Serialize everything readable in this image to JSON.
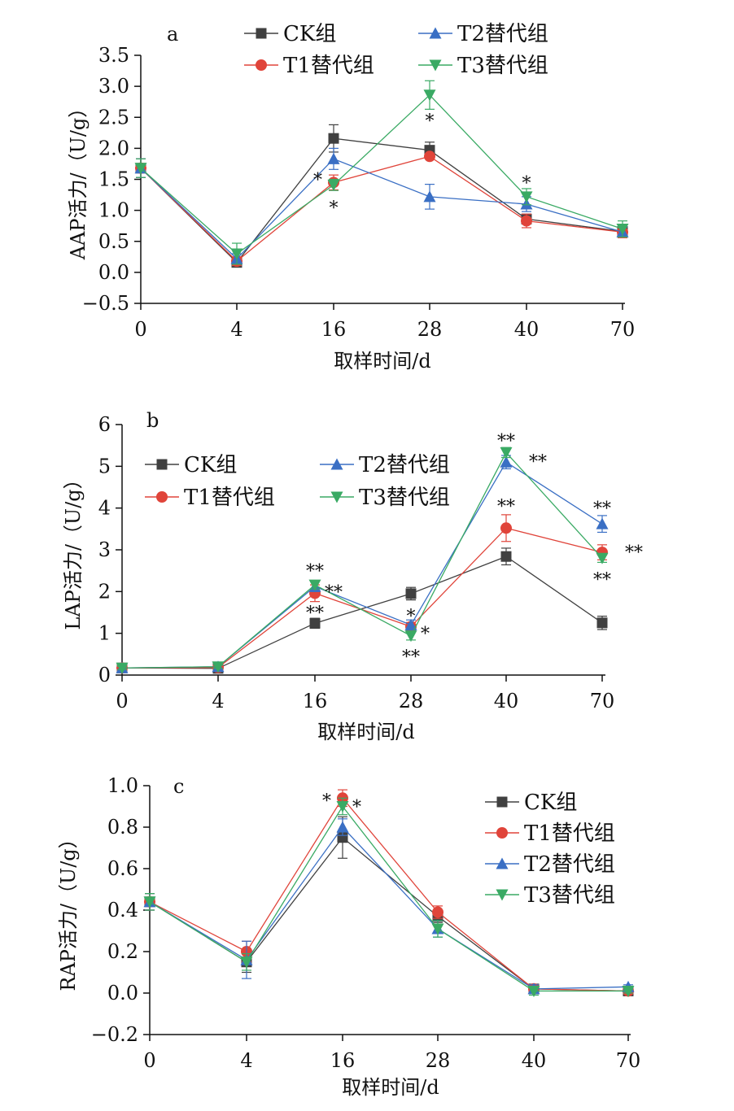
{
  "chart_data": [
    {
      "type": "line",
      "panel_label": "a",
      "ylabel": "AAP活力/（U/g）",
      "xlabel": "取样时间/d",
      "categories": [
        "0",
        "4",
        "16",
        "28",
        "40",
        "70"
      ],
      "ylim": [
        -0.5,
        3.5
      ],
      "yticks": [
        "−0.5",
        "0.0",
        "0.5",
        "1.0",
        "1.5",
        "2.0",
        "2.5",
        "3.0",
        "3.5"
      ],
      "legend_placement": "top",
      "series": [
        {
          "name": "CK组",
          "color": "#404040",
          "marker": "square",
          "values": [
            1.68,
            0.16,
            2.16,
            1.97,
            0.86,
            0.66
          ],
          "errors": [
            0.15,
            0.07,
            0.22,
            0.13,
            0.08,
            0.1
          ]
        },
        {
          "name": "T1替代组",
          "color": "#e0443a",
          "marker": "circle",
          "values": [
            1.68,
            0.18,
            1.45,
            1.87,
            0.83,
            0.65
          ],
          "errors": [
            0.15,
            0.07,
            0.12,
            0.04,
            0.11,
            0.09
          ]
        },
        {
          "name": "T2替代组",
          "color": "#3a6fc4",
          "marker": "triangle-up",
          "values": [
            1.68,
            0.22,
            1.83,
            1.22,
            1.1,
            0.65
          ],
          "errors": [
            0.15,
            0.08,
            0.17,
            0.2,
            0.12,
            0.08
          ]
        },
        {
          "name": "T3替代组",
          "color": "#3aaa64",
          "marker": "triangle-down",
          "values": [
            1.68,
            0.3,
            1.41,
            2.86,
            1.22,
            0.7
          ],
          "errors": [
            0.15,
            0.17,
            0.09,
            0.23,
            0.13,
            0.13
          ]
        }
      ],
      "annotations": [
        {
          "text": "*",
          "x": "16",
          "y": 1.5,
          "side": "left"
        },
        {
          "text": "*",
          "x": "16",
          "y": 1.05,
          "side": "center"
        },
        {
          "text": "*",
          "x": "28",
          "y": 2.45,
          "side": "center"
        },
        {
          "text": "*",
          "x": "40",
          "y": 1.45,
          "side": "center"
        }
      ]
    },
    {
      "type": "line",
      "panel_label": "b",
      "ylabel": "LAP活力/（U/g）",
      "xlabel": "取样时间/d",
      "categories": [
        "0",
        "4",
        "16",
        "28",
        "40",
        "70"
      ],
      "ylim": [
        0,
        6
      ],
      "yticks": [
        "0",
        "1",
        "2",
        "3",
        "4",
        "5",
        "6"
      ],
      "legend_placement": "upper-left",
      "series": [
        {
          "name": "CK组",
          "color": "#404040",
          "marker": "square",
          "values": [
            0.17,
            0.16,
            1.24,
            1.95,
            2.84,
            1.25
          ],
          "errors": [
            0.04,
            0.04,
            0.12,
            0.15,
            0.2,
            0.16
          ]
        },
        {
          "name": "T1替代组",
          "color": "#e0443a",
          "marker": "circle",
          "values": [
            0.17,
            0.18,
            1.96,
            1.16,
            3.52,
            2.94
          ],
          "errors": [
            0.04,
            0.04,
            0.2,
            0.1,
            0.32,
            0.18
          ]
        },
        {
          "name": "T2替代组",
          "color": "#3a6fc4",
          "marker": "triangle-up",
          "values": [
            0.17,
            0.2,
            2.12,
            1.2,
            5.1,
            3.62
          ],
          "errors": [
            0.04,
            0.04,
            0.12,
            0.12,
            0.16,
            0.2
          ]
        },
        {
          "name": "T3替代组",
          "color": "#3aaa64",
          "marker": "triangle-down",
          "values": [
            0.17,
            0.2,
            2.16,
            0.94,
            5.33,
            2.8
          ],
          "errors": [
            0.04,
            0.04,
            0.1,
            0.1,
            0.12,
            0.1
          ]
        }
      ],
      "annotations": [
        {
          "text": "**",
          "x": "16",
          "y": 2.5,
          "side": "center"
        },
        {
          "text": "**",
          "x": "16",
          "y": 2.0,
          "side": "right"
        },
        {
          "text": "**",
          "x": "16",
          "y": 1.5,
          "side": "center"
        },
        {
          "text": "*",
          "x": "28",
          "y": 1.42,
          "side": "center"
        },
        {
          "text": "*",
          "x": "28",
          "y": 1.0,
          "side": "right"
        },
        {
          "text": "**",
          "x": "28",
          "y": 0.45,
          "side": "center"
        },
        {
          "text": "**",
          "x": "40",
          "y": 5.62,
          "side": "center"
        },
        {
          "text": "**",
          "x": "40",
          "y": 5.12,
          "side": "far-right"
        },
        {
          "text": "**",
          "x": "40",
          "y": 4.05,
          "side": "center"
        },
        {
          "text": "**",
          "x": "70",
          "y": 4.0,
          "side": "center"
        },
        {
          "text": "**",
          "x": "70",
          "y": 2.95,
          "side": "far-right"
        },
        {
          "text": "**",
          "x": "70",
          "y": 2.3,
          "side": "center"
        }
      ]
    },
    {
      "type": "line",
      "panel_label": "c",
      "ylabel": "RAP活力/（U/g）",
      "xlabel": "取样时间/d",
      "categories": [
        "0",
        "4",
        "16",
        "28",
        "40",
        "70"
      ],
      "ylim": [
        -0.2,
        1.0
      ],
      "yticks": [
        "−0.2",
        "0.0",
        "0.2",
        "0.4",
        "0.6",
        "0.8",
        "1.0"
      ],
      "legend_placement": "right",
      "series": [
        {
          "name": "CK组",
          "color": "#404040",
          "marker": "square",
          "values": [
            0.44,
            0.15,
            0.75,
            0.37,
            0.02,
            0.01
          ],
          "errors": [
            0.04,
            0.05,
            0.1,
            0.03,
            0.02,
            0.01
          ]
        },
        {
          "name": "T1替代组",
          "color": "#e0443a",
          "marker": "circle",
          "values": [
            0.44,
            0.2,
            0.94,
            0.39,
            0.02,
            0.01
          ],
          "errors": [
            0.04,
            0.05,
            0.04,
            0.03,
            0.02,
            0.01
          ]
        },
        {
          "name": "T2替代组",
          "color": "#3a6fc4",
          "marker": "triangle-up",
          "values": [
            0.44,
            0.16,
            0.8,
            0.31,
            0.02,
            0.03
          ],
          "errors": [
            0.04,
            0.09,
            0.04,
            0.04,
            0.02,
            0.01
          ]
        },
        {
          "name": "T3替代组",
          "color": "#3aaa64",
          "marker": "triangle-down",
          "values": [
            0.44,
            0.15,
            0.9,
            0.31,
            0.01,
            0.01
          ],
          "errors": [
            0.04,
            0.04,
            0.04,
            0.04,
            0.02,
            0.01
          ]
        }
      ],
      "annotations": [
        {
          "text": "*",
          "x": "16",
          "y": 0.93,
          "side": "left"
        },
        {
          "text": "*",
          "x": "16",
          "y": 0.9,
          "side": "right"
        }
      ]
    }
  ]
}
